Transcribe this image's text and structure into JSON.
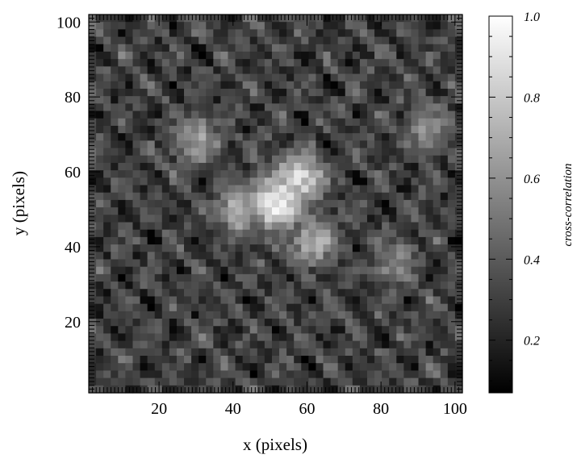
{
  "chart_data": {
    "type": "heatmap",
    "title": "",
    "xlabel": "x (pixels)",
    "ylabel": "y (pixels)",
    "xlim": [
      1,
      102
    ],
    "ylim": [
      1,
      102
    ],
    "x_ticks": [
      20,
      40,
      60,
      80,
      100
    ],
    "y_ticks": [
      20,
      40,
      60,
      80,
      100
    ],
    "colormap": "grayscale",
    "colorbar": {
      "label": "cross-correlation",
      "range": [
        0.07,
        1.0
      ],
      "ticks": [
        0.2,
        0.4,
        0.6,
        0.8,
        1.0
      ],
      "tick_labels": [
        "0.2",
        "0.4",
        "0.6",
        "0.8",
        "1.0"
      ]
    },
    "background_level": 0.3,
    "bright_regions": [
      {
        "x": 52,
        "y": 52,
        "value": 0.95
      },
      {
        "x": 58,
        "y": 58,
        "value": 0.85
      },
      {
        "x": 42,
        "y": 50,
        "value": 0.7
      },
      {
        "x": 62,
        "y": 42,
        "value": 0.7
      },
      {
        "x": 30,
        "y": 68,
        "value": 0.65
      },
      {
        "x": 93,
        "y": 72,
        "value": 0.6
      },
      {
        "x": 84,
        "y": 36,
        "value": 0.55
      }
    ]
  }
}
